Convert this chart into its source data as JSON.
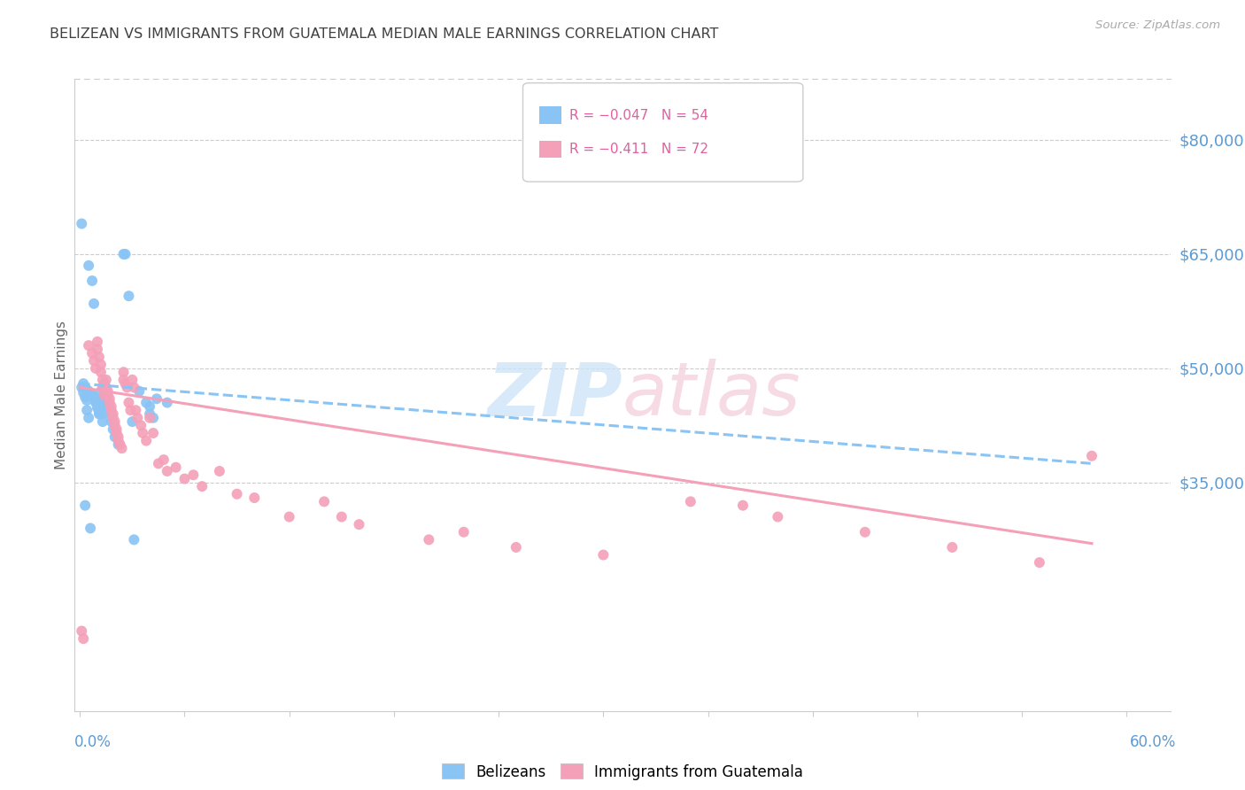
{
  "title": "BELIZEAN VS IMMIGRANTS FROM GUATEMALA MEDIAN MALE EARNINGS CORRELATION CHART",
  "source": "Source: ZipAtlas.com",
  "ylabel": "Median Male Earnings",
  "ymin": 5000,
  "ymax": 88000,
  "xmin": -0.003,
  "xmax": 0.625,
  "color_blue": "#89c4f4",
  "color_pink": "#f4a0b8",
  "right_yticks": [
    80000,
    65000,
    50000,
    35000
  ],
  "right_ytick_labels": [
    "$80,000",
    "$65,000",
    "$50,000",
    "$35,000"
  ],
  "grid_color": "#cccccc",
  "title_color": "#404040",
  "right_axis_color": "#5b9bd5",
  "belizean_points": [
    [
      0.001,
      69000
    ],
    [
      0.005,
      63500
    ],
    [
      0.007,
      61500
    ],
    [
      0.008,
      58500
    ],
    [
      0.002,
      48000
    ],
    [
      0.003,
      47500
    ],
    [
      0.004,
      47200
    ],
    [
      0.005,
      47000
    ],
    [
      0.006,
      46800
    ],
    [
      0.007,
      46500
    ],
    [
      0.008,
      46200
    ],
    [
      0.009,
      46000
    ],
    [
      0.009,
      45800
    ],
    [
      0.009,
      45500
    ],
    [
      0.01,
      45200
    ],
    [
      0.01,
      45000
    ],
    [
      0.01,
      44800
    ],
    [
      0.011,
      44500
    ],
    [
      0.011,
      44200
    ],
    [
      0.011,
      44000
    ],
    [
      0.012,
      47000
    ],
    [
      0.012,
      46000
    ],
    [
      0.012,
      45000
    ],
    [
      0.013,
      44000
    ],
    [
      0.013,
      43000
    ],
    [
      0.014,
      48000
    ],
    [
      0.014,
      47000
    ],
    [
      0.015,
      46000
    ],
    [
      0.016,
      45000
    ],
    [
      0.017,
      44000
    ],
    [
      0.018,
      43000
    ],
    [
      0.019,
      42000
    ],
    [
      0.02,
      41000
    ],
    [
      0.022,
      40000
    ],
    [
      0.025,
      65000
    ],
    [
      0.026,
      65000
    ],
    [
      0.028,
      59500
    ],
    [
      0.03,
      43000
    ],
    [
      0.034,
      47000
    ],
    [
      0.038,
      45500
    ],
    [
      0.04,
      45000
    ],
    [
      0.04,
      44000
    ],
    [
      0.042,
      43500
    ],
    [
      0.044,
      46000
    ],
    [
      0.05,
      45500
    ],
    [
      0.003,
      32000
    ],
    [
      0.006,
      29000
    ],
    [
      0.031,
      27500
    ],
    [
      0.001,
      47500
    ],
    [
      0.002,
      46800
    ],
    [
      0.003,
      46200
    ],
    [
      0.004,
      45800
    ],
    [
      0.004,
      44500
    ],
    [
      0.005,
      43500
    ]
  ],
  "guatemala_points": [
    [
      0.005,
      53000
    ],
    [
      0.007,
      52000
    ],
    [
      0.008,
      51000
    ],
    [
      0.009,
      50000
    ],
    [
      0.01,
      53500
    ],
    [
      0.01,
      52500
    ],
    [
      0.011,
      51500
    ],
    [
      0.012,
      50500
    ],
    [
      0.012,
      49500
    ],
    [
      0.013,
      48500
    ],
    [
      0.013,
      47500
    ],
    [
      0.014,
      46500
    ],
    [
      0.015,
      48500
    ],
    [
      0.015,
      47500
    ],
    [
      0.016,
      47000
    ],
    [
      0.016,
      46500
    ],
    [
      0.017,
      46000
    ],
    [
      0.017,
      45500
    ],
    [
      0.018,
      45000
    ],
    [
      0.018,
      44500
    ],
    [
      0.019,
      44000
    ],
    [
      0.019,
      43500
    ],
    [
      0.02,
      43000
    ],
    [
      0.02,
      42500
    ],
    [
      0.021,
      42000
    ],
    [
      0.021,
      41500
    ],
    [
      0.022,
      41000
    ],
    [
      0.022,
      40500
    ],
    [
      0.023,
      40000
    ],
    [
      0.024,
      39500
    ],
    [
      0.025,
      49500
    ],
    [
      0.025,
      48500
    ],
    [
      0.026,
      48000
    ],
    [
      0.027,
      47500
    ],
    [
      0.028,
      45500
    ],
    [
      0.029,
      44500
    ],
    [
      0.03,
      48500
    ],
    [
      0.031,
      47500
    ],
    [
      0.032,
      44500
    ],
    [
      0.033,
      43500
    ],
    [
      0.035,
      42500
    ],
    [
      0.036,
      41500
    ],
    [
      0.038,
      40500
    ],
    [
      0.04,
      43500
    ],
    [
      0.042,
      41500
    ],
    [
      0.045,
      37500
    ],
    [
      0.048,
      38000
    ],
    [
      0.05,
      36500
    ],
    [
      0.055,
      37000
    ],
    [
      0.06,
      35500
    ],
    [
      0.065,
      36000
    ],
    [
      0.07,
      34500
    ],
    [
      0.08,
      36500
    ],
    [
      0.09,
      33500
    ],
    [
      0.1,
      33000
    ],
    [
      0.12,
      30500
    ],
    [
      0.14,
      32500
    ],
    [
      0.15,
      30500
    ],
    [
      0.16,
      29500
    ],
    [
      0.2,
      27500
    ],
    [
      0.22,
      28500
    ],
    [
      0.25,
      26500
    ],
    [
      0.3,
      25500
    ],
    [
      0.35,
      32500
    ],
    [
      0.38,
      32000
    ],
    [
      0.4,
      30500
    ],
    [
      0.45,
      28500
    ],
    [
      0.5,
      26500
    ],
    [
      0.55,
      24500
    ],
    [
      0.001,
      15500
    ],
    [
      0.002,
      14500
    ],
    [
      0.58,
      38500
    ]
  ],
  "blue_line": [
    [
      0.0,
      48000
    ],
    [
      0.58,
      37500
    ]
  ],
  "pink_line": [
    [
      0.0,
      47500
    ],
    [
      0.58,
      27000
    ]
  ]
}
